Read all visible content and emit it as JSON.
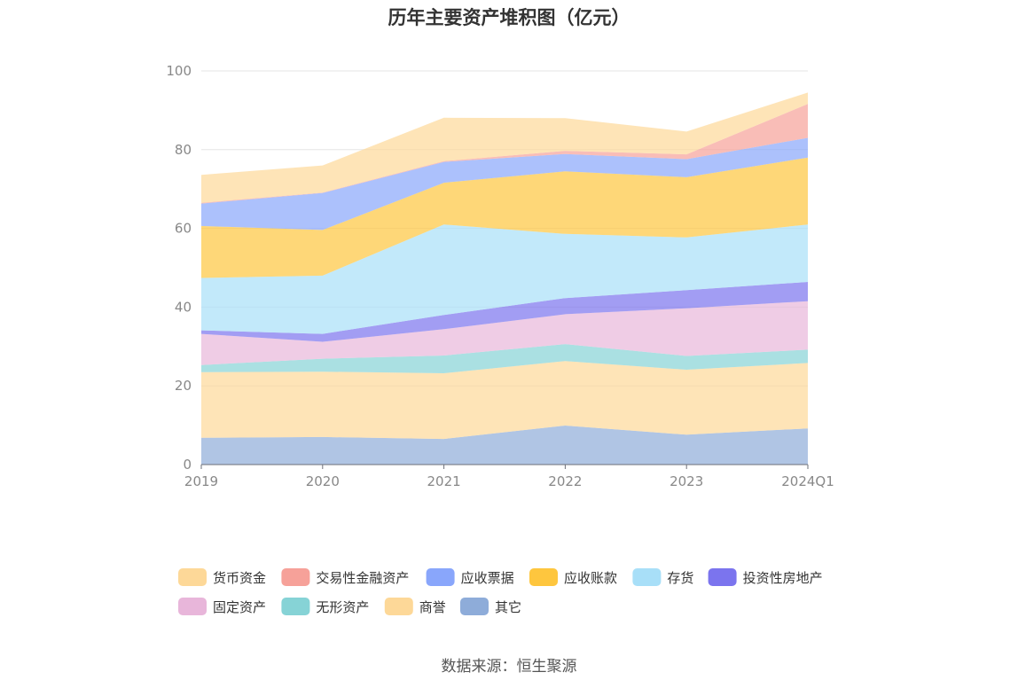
{
  "chart_data": {
    "type": "area",
    "stacked": true,
    "title": "历年主要资产堆积图（亿元）",
    "x": [
      "2019",
      "2020",
      "2021",
      "2022",
      "2023",
      "2024Q1"
    ],
    "ylim": [
      0,
      100
    ],
    "yticks": [
      0,
      20,
      40,
      60,
      80,
      100
    ],
    "grid": true,
    "legend_position": "bottom",
    "series": [
      {
        "name": "其它",
        "color": "#8eacd9",
        "values": [
          6.8,
          7.0,
          6.5,
          9.9,
          7.6,
          9.2
        ]
      },
      {
        "name": "商誉",
        "color": "#fdd898",
        "values": [
          16.7,
          16.6,
          16.7,
          16.4,
          16.5,
          16.6
        ]
      },
      {
        "name": "无形资产",
        "color": "#86d3d6",
        "values": [
          1.8,
          3.3,
          4.5,
          4.3,
          3.5,
          3.4
        ]
      },
      {
        "name": "固定资产",
        "color": "#e8b6da",
        "values": [
          7.9,
          4.3,
          6.7,
          7.6,
          12.1,
          12.3
        ]
      },
      {
        "name": "投资性房地产",
        "color": "#7b74ee",
        "values": [
          0.9,
          2.0,
          3.6,
          4.1,
          4.6,
          4.9
        ]
      },
      {
        "name": "存货",
        "color": "#a8dff8",
        "values": [
          13.3,
          14.8,
          23.0,
          16.3,
          13.4,
          14.6
        ]
      },
      {
        "name": "应收账款",
        "color": "#fec63e",
        "values": [
          13.2,
          11.6,
          10.6,
          15.9,
          15.3,
          17.0
        ]
      },
      {
        "name": "应收票据",
        "color": "#89a6fb",
        "values": [
          5.7,
          9.4,
          5.3,
          4.4,
          4.6,
          5.0
        ]
      },
      {
        "name": "交易性金融资产",
        "color": "#f6a199",
        "values": [
          0.2,
          0.1,
          0.2,
          0.8,
          1.2,
          8.6
        ]
      },
      {
        "name": "货币资金",
        "color": "#fdd898",
        "values": [
          7.1,
          6.9,
          11.0,
          8.3,
          5.8,
          2.9
        ]
      }
    ]
  },
  "source_text": "数据来源：恒生聚源"
}
